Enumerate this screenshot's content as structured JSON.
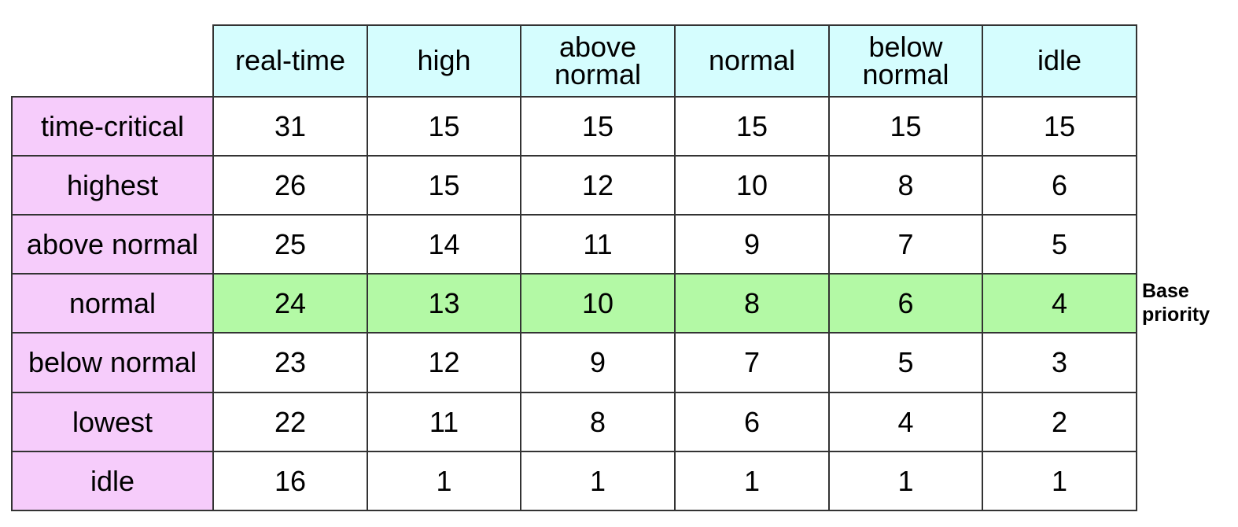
{
  "process_priority_classes": [
    "real-time",
    "high",
    "above\nnormal",
    "normal",
    "below\nnormal",
    "idle"
  ],
  "thread_priorities": [
    "time-critical",
    "highest",
    "above normal",
    "normal",
    "below normal",
    "lowest",
    "idle"
  ],
  "values": [
    [
      31,
      15,
      15,
      15,
      15,
      15
    ],
    [
      26,
      15,
      12,
      10,
      8,
      6
    ],
    [
      25,
      14,
      11,
      9,
      7,
      5
    ],
    [
      24,
      13,
      10,
      8,
      6,
      4
    ],
    [
      23,
      12,
      9,
      7,
      5,
      3
    ],
    [
      22,
      11,
      8,
      6,
      4,
      2
    ],
    [
      16,
      1,
      1,
      1,
      1,
      1
    ]
  ],
  "highlighted_row": "normal",
  "base_priority_label": "Base\npriority",
  "colors": {
    "column_header_bg": "#d5fdfe",
    "row_header_bg": "#f6ccfb",
    "base_priority_row_bg": "#b3f9a5",
    "cell_bg": "#ffffff",
    "border": "#333333"
  }
}
